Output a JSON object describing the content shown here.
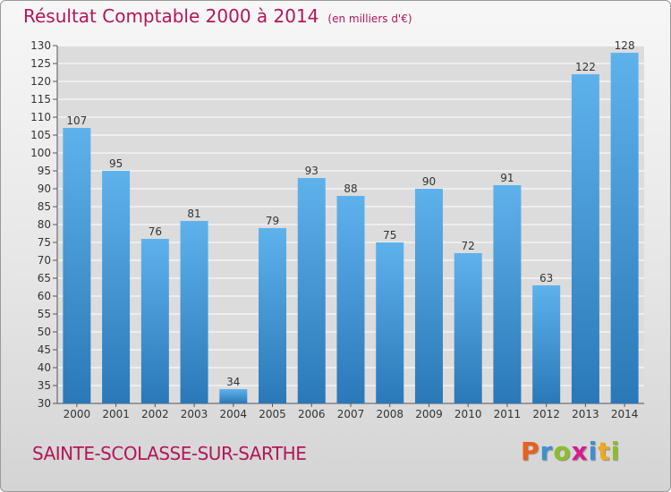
{
  "chart_data": {
    "type": "bar",
    "title": "Résultat Comptable 2000 à 2014",
    "subtitle": "(en milliers d'€)",
    "categories": [
      "2000",
      "2001",
      "2002",
      "2003",
      "2004",
      "2005",
      "2006",
      "2007",
      "2008",
      "2009",
      "2010",
      "2011",
      "2012",
      "2013",
      "2014"
    ],
    "values": [
      107,
      95,
      76,
      81,
      34,
      79,
      93,
      88,
      75,
      90,
      72,
      91,
      63,
      122,
      128
    ],
    "ylim": [
      30,
      130
    ],
    "ytick_step": 5,
    "grid": true,
    "xlabel": "",
    "ylabel": "",
    "colors": {
      "bar_light": "#5eb2ec",
      "bar_dark": "#2a78b8",
      "title": "#b4155a",
      "grid": "#ffffff"
    }
  },
  "footer": {
    "commune": "SAINTE-SCOLASSE-SUR-SARTHE",
    "logo_text": "Proxiti",
    "logo_colors": [
      "#e8601c",
      "#3d8fd1",
      "#8cbf26",
      "#d81c8b",
      "#3d8fd1",
      "#f0a81c",
      "#8cbf26"
    ]
  }
}
